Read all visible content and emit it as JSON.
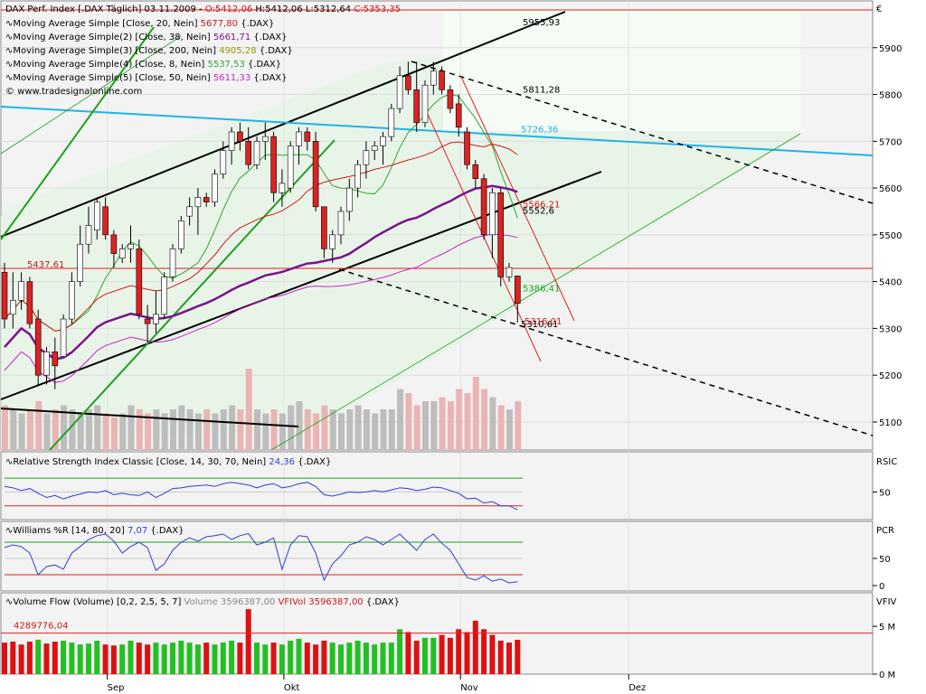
{
  "chart_data": {
    "type": "candlestick",
    "colors": {
      "up": "#ffffff",
      "down": "#dd2222",
      "ma20": "#d01818",
      "ma38": "#7a148a",
      "ma200": "#9a9a00",
      "ma8": "#2ea82e",
      "ma50": "#cc22cc",
      "rsi": "#2c3fd6",
      "williams": "#2c3fd6",
      "volume_up": "#22c022",
      "volume_down": "#dd1111",
      "trend_up": "#000000",
      "trend_cyan": "#1eb4e8",
      "trend_green": "#1ea01e",
      "trend_red": "#dd2222"
    },
    "price_panel": {
      "header": {
        "prefix": "DAX Perf. Index [.DAX  Täglich] 03.11.2009 - ",
        "open": "O:5412,06",
        "high": "H:5412,06",
        "low": "L:5312,64",
        "close": "C:5353,35"
      },
      "legend": [
        {
          "label": "Moving Average Simple [Close, 20, Nein]",
          "value": "5677,80",
          "suffix": "{.DAX}",
          "color": "#d01818"
        },
        {
          "label": "Moving Average Simple(2) [Close, 38, Nein]",
          "value": "5661,71",
          "suffix": "{.DAX}",
          "color": "#7a148a"
        },
        {
          "label": "Moving Average Simple(3) [Close, 200, Nein]",
          "value": "4905,28",
          "suffix": "{.DAX}",
          "color": "#9a9a00"
        },
        {
          "label": "Moving Average Simple(4) [Close, 8, Nein]",
          "value": "5537,53",
          "suffix": "{.DAX}",
          "color": "#2ea82e"
        },
        {
          "label": "Moving Average Simple(5) [Close, 50, Nein]",
          "value": "5611,33",
          "suffix": "{.DAX}",
          "color": "#cc22cc"
        }
      ],
      "watermark": "© www.tradesignalonline.com",
      "currency": "€",
      "yticks": [
        5100,
        5200,
        5300,
        5400,
        5500,
        5600,
        5700,
        5800,
        5900
      ],
      "ylim": [
        5040,
        6000
      ],
      "annotations": [
        {
          "text": "5955,93",
          "price": 5955.93
        },
        {
          "text": "5811,28",
          "price": 5811.28
        },
        {
          "text": "5726,36",
          "price": 5726.36
        },
        {
          "text": "5437,61",
          "price": 5437.61
        },
        {
          "text": "5566,21",
          "price": 5566.21
        },
        {
          "text": "5552,6",
          "price": 5552.6
        },
        {
          "text": "5386,41",
          "price": 5386.41
        },
        {
          "text": "5310,61",
          "price": 5310.61
        },
        {
          "text": "5316,01",
          "price": 5316.01
        }
      ],
      "candles": [
        [
          5420,
          5440,
          5300,
          5320
        ],
        [
          5330,
          5420,
          5300,
          5360
        ],
        [
          5360,
          5420,
          5340,
          5400
        ],
        [
          5400,
          5410,
          5300,
          5310
        ],
        [
          5320,
          5340,
          5180,
          5200
        ],
        [
          5200,
          5260,
          5180,
          5250
        ],
        [
          5250,
          5280,
          5170,
          5220
        ],
        [
          5240,
          5330,
          5240,
          5320
        ],
        [
          5320,
          5420,
          5310,
          5400
        ],
        [
          5400,
          5520,
          5390,
          5480
        ],
        [
          5480,
          5560,
          5460,
          5520
        ],
        [
          5510,
          5580,
          5490,
          5570
        ],
        [
          5560,
          5580,
          5490,
          5500
        ],
        [
          5500,
          5510,
          5430,
          5460
        ],
        [
          5450,
          5480,
          5440,
          5470
        ],
        [
          5470,
          5520,
          5440,
          5480
        ],
        [
          5470,
          5490,
          5320,
          5330
        ],
        [
          5320,
          5350,
          5270,
          5310
        ],
        [
          5310,
          5380,
          5290,
          5330
        ],
        [
          5330,
          5420,
          5320,
          5410
        ],
        [
          5410,
          5480,
          5400,
          5470
        ],
        [
          5470,
          5540,
          5460,
          5530
        ],
        [
          5540,
          5580,
          5520,
          5560
        ],
        [
          5560,
          5600,
          5500,
          5580
        ],
        [
          5580,
          5590,
          5560,
          5570
        ],
        [
          5570,
          5640,
          5560,
          5630
        ],
        [
          5630,
          5700,
          5620,
          5680
        ],
        [
          5680,
          5730,
          5650,
          5720
        ],
        [
          5720,
          5740,
          5680,
          5700
        ],
        [
          5700,
          5730,
          5640,
          5650
        ],
        [
          5650,
          5710,
          5640,
          5700
        ],
        [
          5700,
          5740,
          5660,
          5710
        ],
        [
          5710,
          5720,
          5570,
          5590
        ],
        [
          5590,
          5640,
          5560,
          5610
        ],
        [
          5600,
          5700,
          5590,
          5690
        ],
        [
          5690,
          5730,
          5650,
          5720
        ],
        [
          5720,
          5730,
          5680,
          5700
        ],
        [
          5700,
          5720,
          5550,
          5560
        ],
        [
          5560,
          5560,
          5450,
          5470
        ],
        [
          5470,
          5510,
          5440,
          5500
        ],
        [
          5500,
          5560,
          5480,
          5550
        ],
        [
          5550,
          5620,
          5530,
          5600
        ],
        [
          5600,
          5660,
          5580,
          5650
        ],
        [
          5650,
          5700,
          5620,
          5680
        ],
        [
          5680,
          5700,
          5660,
          5690
        ],
        [
          5690,
          5720,
          5650,
          5710
        ],
        [
          5710,
          5780,
          5700,
          5770
        ],
        [
          5770,
          5860,
          5760,
          5840
        ],
        [
          5840,
          5870,
          5800,
          5810
        ],
        [
          5810,
          5870,
          5720,
          5740
        ],
        [
          5740,
          5830,
          5730,
          5820
        ],
        [
          5820,
          5870,
          5800,
          5850
        ],
        [
          5850,
          5860,
          5800,
          5810
        ],
        [
          5810,
          5820,
          5760,
          5770
        ],
        [
          5780,
          5800,
          5710,
          5730
        ],
        [
          5720,
          5730,
          5640,
          5650
        ],
        [
          5650,
          5660,
          5600,
          5620
        ],
        [
          5620,
          5630,
          5490,
          5500
        ],
        [
          5500,
          5600,
          5450,
          5590
        ],
        [
          5590,
          5600,
          5390,
          5410
        ],
        [
          5410,
          5440,
          5400,
          5430
        ],
        [
          5412.06,
          5412.06,
          5312.64,
          5353.35
        ]
      ],
      "volume_bars": [
        0.55,
        0.5,
        0.45,
        0.5,
        0.6,
        0.45,
        0.5,
        0.55,
        0.5,
        0.45,
        0.5,
        0.55,
        0.45,
        0.4,
        0.45,
        0.55,
        0.5,
        0.45,
        0.5,
        0.45,
        0.5,
        0.55,
        0.5,
        0.45,
        0.5,
        0.45,
        0.5,
        0.55,
        0.5,
        1.0,
        0.5,
        0.45,
        0.5,
        0.45,
        0.55,
        0.6,
        0.5,
        0.45,
        0.55,
        0.5,
        0.45,
        0.5,
        0.55,
        0.5,
        0.45,
        0.5,
        0.5,
        0.75,
        0.7,
        0.55,
        0.6,
        0.6,
        0.65,
        0.6,
        0.75,
        0.7,
        0.9,
        0.75,
        0.65,
        0.55,
        0.5,
        0.6
      ]
    },
    "rsi_panel": {
      "header_label": "Relative Strength Index Classic [Close, 14, 30, 70, Nein]",
      "header_value": "24,36",
      "header_suffix": "{.DAX}",
      "axis_title": "RSIC",
      "ytick_label": "50",
      "ylim": [
        10,
        95
      ],
      "levels": [
        70,
        50,
        30
      ],
      "values": [
        58,
        56,
        52,
        55,
        48,
        42,
        45,
        40,
        44,
        47,
        50,
        49,
        52,
        46,
        48,
        46,
        45,
        50,
        42,
        48,
        55,
        56,
        58,
        59,
        60,
        58,
        62,
        64,
        62,
        60,
        56,
        60,
        62,
        56,
        58,
        62,
        64,
        58,
        46,
        44,
        47,
        50,
        49,
        50,
        52,
        50,
        53,
        56,
        55,
        52,
        54,
        57,
        56,
        52,
        48,
        40,
        41,
        34,
        36,
        30,
        30,
        24.36
      ]
    },
    "williams_panel": {
      "header_label": "Williams %R [14, 80, 20]",
      "header_value": "7,07",
      "header_suffix": "{.DAX}",
      "axis_title": "PCR",
      "ytick_labels": [
        "50",
        "0"
      ],
      "ylim": [
        -10,
        110
      ],
      "levels": [
        80,
        50,
        20
      ],
      "values": [
        70,
        75,
        72,
        60,
        20,
        35,
        38,
        30,
        60,
        72,
        85,
        92,
        95,
        82,
        60,
        72,
        80,
        70,
        28,
        40,
        65,
        80,
        88,
        82,
        90,
        92,
        95,
        85,
        92,
        96,
        75,
        80,
        88,
        30,
        75,
        92,
        90,
        60,
        10,
        40,
        55,
        75,
        80,
        90,
        85,
        75,
        85,
        95,
        80,
        65,
        85,
        95,
        78,
        65,
        40,
        15,
        10,
        18,
        8,
        12,
        5,
        7.07
      ]
    },
    "volume_panel": {
      "header_label": "Volume Flow (Volume) [0,2, 2,5, 5, 7]",
      "header_volume": "Volume 3596387,00",
      "header_vfivol": "VFIVol 3596387,00",
      "header_suffix": "{.DAX}",
      "axis_title": "VFIV",
      "ytick_labels": [
        "5 M",
        "0 M"
      ],
      "ylim": [
        0,
        7000000
      ],
      "level_text": "4289776,04",
      "level": 4289776.04,
      "colors": [
        "red",
        "red",
        "red",
        "red",
        "green",
        "red",
        "red",
        "green",
        "green",
        "green",
        "green",
        "green",
        "red",
        "red",
        "green",
        "green",
        "red",
        "red",
        "green",
        "green",
        "green",
        "green",
        "green",
        "green",
        "red",
        "green",
        "green",
        "green",
        "red",
        "red",
        "green",
        "green",
        "red",
        "green",
        "green",
        "green",
        "red",
        "red",
        "red",
        "green",
        "green",
        "green",
        "green",
        "green",
        "green",
        "green",
        "green",
        "green",
        "red",
        "red",
        "green",
        "green",
        "red",
        "red",
        "red",
        "red",
        "red",
        "red",
        "red",
        "red",
        "red",
        "red"
      ],
      "values": [
        3300000,
        3400000,
        3100000,
        3400000,
        3600000,
        3200000,
        3400000,
        3500000,
        3300000,
        3100000,
        3200000,
        3500000,
        3100000,
        3000000,
        3100000,
        3500000,
        3300000,
        3100000,
        3300000,
        3100000,
        3300000,
        3500000,
        3300000,
        3100000,
        3300000,
        3100000,
        3300000,
        3500000,
        3300000,
        6800000,
        3300000,
        3100000,
        3300000,
        3100000,
        3500000,
        3700000,
        3300000,
        3100000,
        3500000,
        3300000,
        3100000,
        3300000,
        3500000,
        3300000,
        3100000,
        3300000,
        3300000,
        4700000,
        4400000,
        3500000,
        3800000,
        3800000,
        4100000,
        3800000,
        4700000,
        4400000,
        5600000,
        4700000,
        4100000,
        3500000,
        3300000,
        3596387
      ]
    },
    "xaxis": {
      "labels": [
        {
          "text": "Sep",
          "bar": 12
        },
        {
          "text": "Okt",
          "bar": 33
        },
        {
          "text": "Nov",
          "bar": 54
        },
        {
          "text": "Dez",
          "bar": 74
        }
      ]
    }
  }
}
